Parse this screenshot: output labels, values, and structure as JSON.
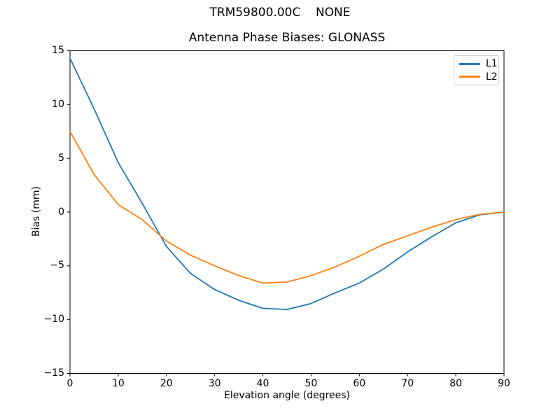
{
  "chart_data": {
    "type": "line",
    "suptitle": "TRM59800.00C    NONE",
    "title": "Antenna Phase Biases: GLONASS",
    "xlabel": "Elevation angle (degrees)",
    "ylabel": "Bias (mm)",
    "xlim": [
      0,
      90
    ],
    "ylim": [
      -15,
      15
    ],
    "grid": false,
    "legend_position": "upper right",
    "x_ticks": [
      0,
      10,
      20,
      30,
      40,
      50,
      60,
      70,
      80,
      90
    ],
    "x_tick_labels": [
      "0",
      "10",
      "20",
      "30",
      "40",
      "50",
      "60",
      "70",
      "80",
      "90"
    ],
    "y_ticks": [
      15,
      10,
      5,
      0,
      -5,
      -10,
      -15
    ],
    "y_tick_labels": [
      "15",
      "10",
      "5",
      "0",
      "−5",
      "−10",
      "−15"
    ],
    "x": [
      0,
      5,
      10,
      15,
      20,
      25,
      30,
      35,
      40,
      45,
      50,
      55,
      60,
      65,
      70,
      75,
      80,
      85,
      90
    ],
    "series": [
      {
        "name": "L1",
        "color": "#1f77b4",
        "values": [
          14.3,
          9.6,
          4.6,
          0.8,
          -3.2,
          -5.7,
          -7.2,
          -8.2,
          -8.95,
          -9.05,
          -8.5,
          -7.5,
          -6.6,
          -5.3,
          -3.7,
          -2.3,
          -1.0,
          -0.25,
          0.0
        ]
      },
      {
        "name": "L2",
        "color": "#ff7f0e",
        "values": [
          7.5,
          3.5,
          0.7,
          -0.7,
          -2.7,
          -4.0,
          -5.0,
          -5.9,
          -6.6,
          -6.5,
          -5.9,
          -5.1,
          -4.1,
          -3.0,
          -2.2,
          -1.4,
          -0.7,
          -0.2,
          0.0
        ]
      }
    ],
    "frame_color": "#000000",
    "background_color": "#ffffff"
  }
}
